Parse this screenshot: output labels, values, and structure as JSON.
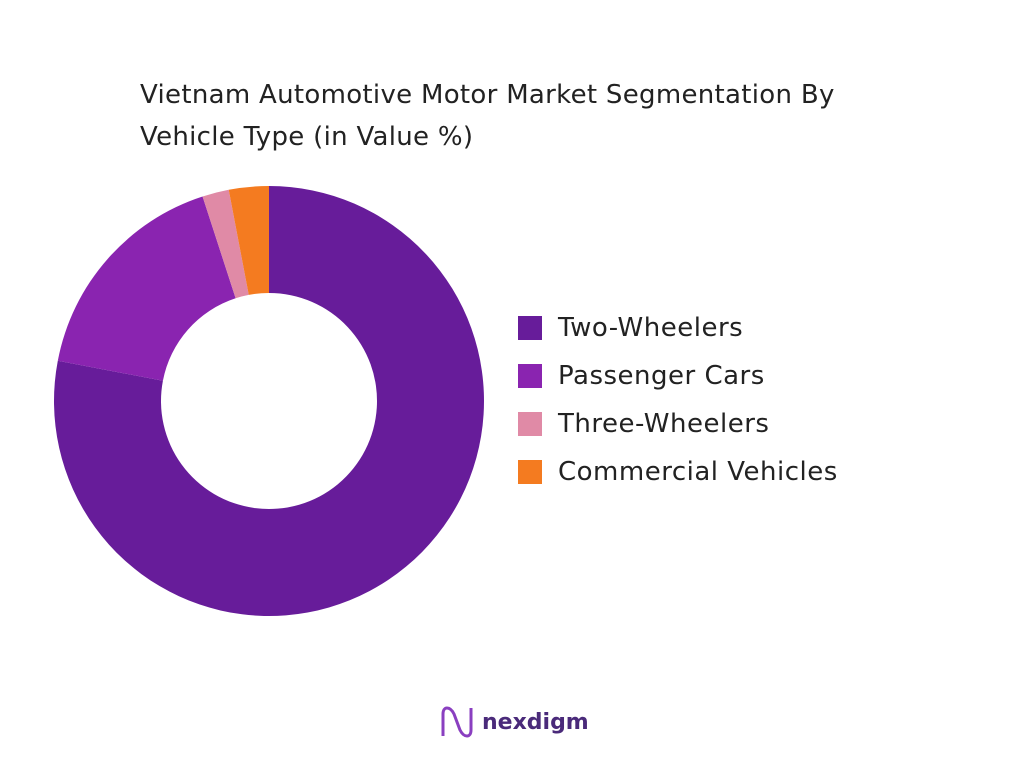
{
  "chart_data": {
    "type": "donut",
    "title": "Vietnam Automotive Motor Market Segmentation By Vehicle Type (in Value %)",
    "categories": [
      "Two-Wheelers",
      "Passenger Cars",
      "Three-Wheelers",
      "Commercial Vehicles"
    ],
    "values": [
      78,
      17,
      2,
      3
    ],
    "colors": [
      "#671c9a",
      "#8a24b0",
      "#e08aa6",
      "#f47b20"
    ],
    "legend": "right"
  },
  "brand": "nexdigm"
}
